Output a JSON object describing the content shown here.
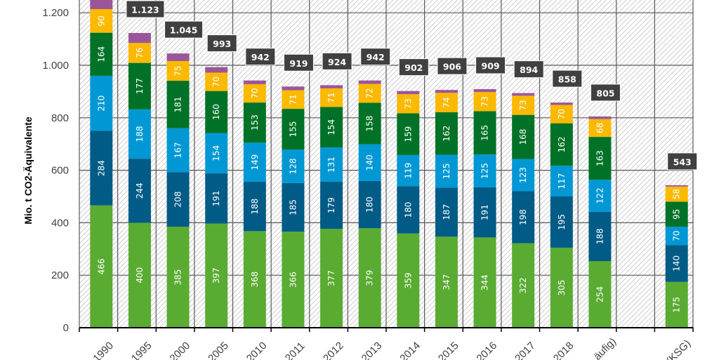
{
  "chart_data": {
    "type": "bar",
    "stacked": true,
    "title": "",
    "xlabel": "",
    "ylabel": "Mio. t CO2-Äquivalente",
    "ylim": [
      0,
      1200
    ],
    "yticks": [
      0,
      200,
      400,
      600,
      800,
      1000,
      1200
    ],
    "ytick_labels": [
      "0",
      "200",
      "400",
      "600",
      "800",
      "1.000",
      "1.200"
    ],
    "grid": true,
    "legend": "none",
    "categories": [
      "1990",
      "1995",
      "2000",
      "2005",
      "2010",
      "2011",
      "2012",
      "2013",
      "2014",
      "2015",
      "2016",
      "2017",
      "2018",
      "...äufig)",
      "",
      "(KSG)"
    ],
    "totals": [
      null,
      "1.123",
      "1.045",
      "993",
      "942",
      "919",
      "924",
      "942",
      "902",
      "906",
      "909",
      "894",
      "858",
      "805",
      null,
      "543"
    ],
    "series": [
      {
        "name": "segment-1",
        "color": "#5aab32",
        "values": [
          466,
          400,
          385,
          397,
          368,
          366,
          377,
          379,
          359,
          347,
          344,
          322,
          305,
          254,
          null,
          175
        ]
      },
      {
        "name": "segment-2",
        "color": "#005b86",
        "values": [
          284,
          244,
          208,
          191,
          188,
          185,
          179,
          180,
          180,
          187,
          191,
          198,
          195,
          188,
          null,
          140
        ]
      },
      {
        "name": "segment-3",
        "color": "#0098d4",
        "values": [
          210,
          188,
          167,
          154,
          149,
          128,
          131,
          140,
          119,
          125,
          125,
          123,
          117,
          122,
          null,
          70
        ]
      },
      {
        "name": "segment-4",
        "color": "#007227",
        "values": [
          164,
          177,
          181,
          160,
          153,
          155,
          154,
          158,
          159,
          162,
          165,
          168,
          162,
          163,
          null,
          95
        ]
      },
      {
        "name": "segment-5",
        "color": "#fbb900",
        "values": [
          90,
          76,
          75,
          70,
          70,
          71,
          71,
          72,
          73,
          74,
          73,
          73,
          70,
          68,
          null,
          58
        ]
      },
      {
        "name": "segment-6",
        "color": "#9b569a",
        "values": [
          37,
          38,
          29,
          21,
          14,
          14,
          12,
          13,
          12,
          11,
          11,
          10,
          9,
          10,
          null,
          5
        ]
      }
    ],
    "label_series": [
      0,
      1,
      2,
      3,
      4
    ],
    "colors": {
      "total_box": "#404040",
      "grid": "#595959",
      "hatch": "#d0d0d0",
      "axis": "#000000"
    }
  }
}
